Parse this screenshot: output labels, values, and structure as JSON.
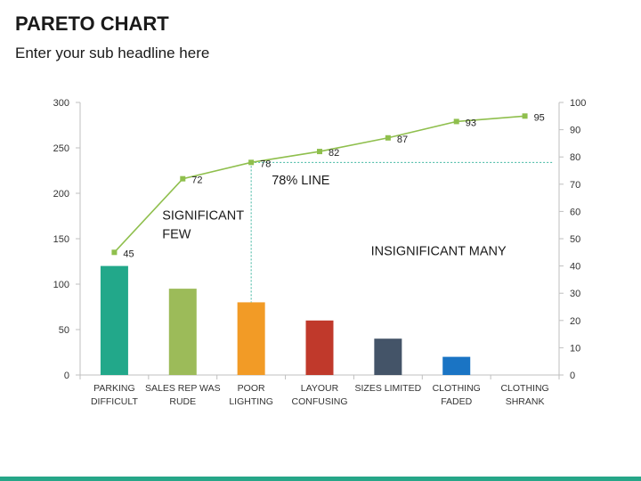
{
  "page": {
    "title": "PARETO CHART",
    "subtitle": "Enter your sub headline here"
  },
  "colors": {
    "accent": "#26a688",
    "line": "#8fbf4d",
    "threshold": "#3fb7a0"
  },
  "chart_data": {
    "type": "bar",
    "title": "",
    "xlabel": "",
    "ylabel": "",
    "categories": [
      [
        "PARKING",
        "DIFFICULT"
      ],
      [
        "SALES REP WAS",
        "RUDE"
      ],
      [
        "POOR",
        "LIGHTING"
      ],
      [
        "LAYOUR",
        "CONFUSING"
      ],
      [
        "SIZES LIMITED"
      ],
      [
        "CLOTHING",
        "FADED"
      ],
      [
        "CLOTHING",
        "SHRANK"
      ]
    ],
    "bars": {
      "values": [
        120,
        95,
        80,
        60,
        40,
        20,
        0
      ],
      "colors": [
        "#22a88a",
        "#9cbb59",
        "#f29b26",
        "#c0392b",
        "#445468",
        "#1a74c4",
        "#9e9e9e"
      ]
    },
    "line": {
      "values": [
        45,
        72,
        78,
        82,
        87,
        93,
        95
      ],
      "color": "#8fbf4d"
    },
    "y_left": {
      "ylim": [
        0,
        300
      ],
      "ticks": [
        0,
        50,
        100,
        150,
        200,
        250,
        300
      ]
    },
    "y_right": {
      "ylim": [
        0,
        100
      ],
      "ticks": [
        0,
        10,
        20,
        30,
        40,
        50,
        60,
        70,
        80,
        90,
        100
      ]
    },
    "threshold": {
      "value": 78,
      "category_index": 2
    },
    "annotations": [
      {
        "text": [
          "78% LINE"
        ],
        "category": 2.3,
        "value": 70
      },
      {
        "text": [
          "SIGNIFICANT",
          "FEW"
        ],
        "category": 0.7,
        "value": 57
      },
      {
        "text": [
          "INSIGNIFICANT MANY"
        ],
        "category": 3.75,
        "value": 44
      }
    ],
    "grid": false,
    "legend": "none"
  }
}
